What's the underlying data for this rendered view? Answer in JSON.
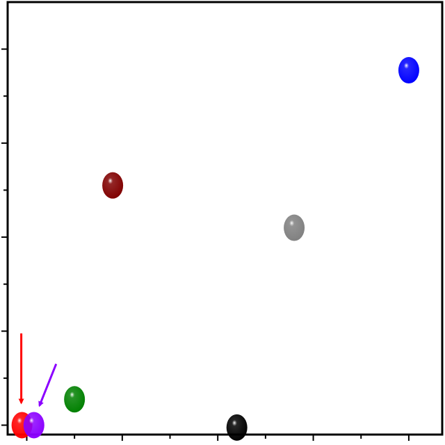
{
  "chart_data": {
    "type": "scatter",
    "title": "",
    "xlabel": "",
    "ylabel": "",
    "xlim": [
      -0.4,
      8.7
    ],
    "ylim": [
      -0.2,
      9.0
    ],
    "x_ticks": [
      0,
      1,
      2,
      3,
      4,
      5,
      6,
      7,
      8
    ],
    "y_ticks": [
      0,
      1,
      2,
      3,
      4,
      5,
      6,
      7,
      8
    ],
    "tick_labels_shown": false,
    "grid": false,
    "points": [
      {
        "x": -0.1,
        "y": 0.0,
        "color": "#ff0000"
      },
      {
        "x": 0.15,
        "y": 0.0,
        "color": "#8b00ff"
      },
      {
        "x": 1.0,
        "y": 0.55,
        "color": "#008000"
      },
      {
        "x": 1.8,
        "y": 5.1,
        "color": "#800000"
      },
      {
        "x": 4.4,
        "y": -0.05,
        "color": "#000000"
      },
      {
        "x": 5.6,
        "y": 4.2,
        "color": "#808080"
      },
      {
        "x": 8.0,
        "y": 7.55,
        "color": "#0000ff"
      }
    ],
    "annotations": [
      {
        "type": "arrow",
        "color": "#ff0000",
        "points_to": 0
      },
      {
        "type": "arrow",
        "color": "#8b00ff",
        "points_to": 1
      }
    ]
  }
}
